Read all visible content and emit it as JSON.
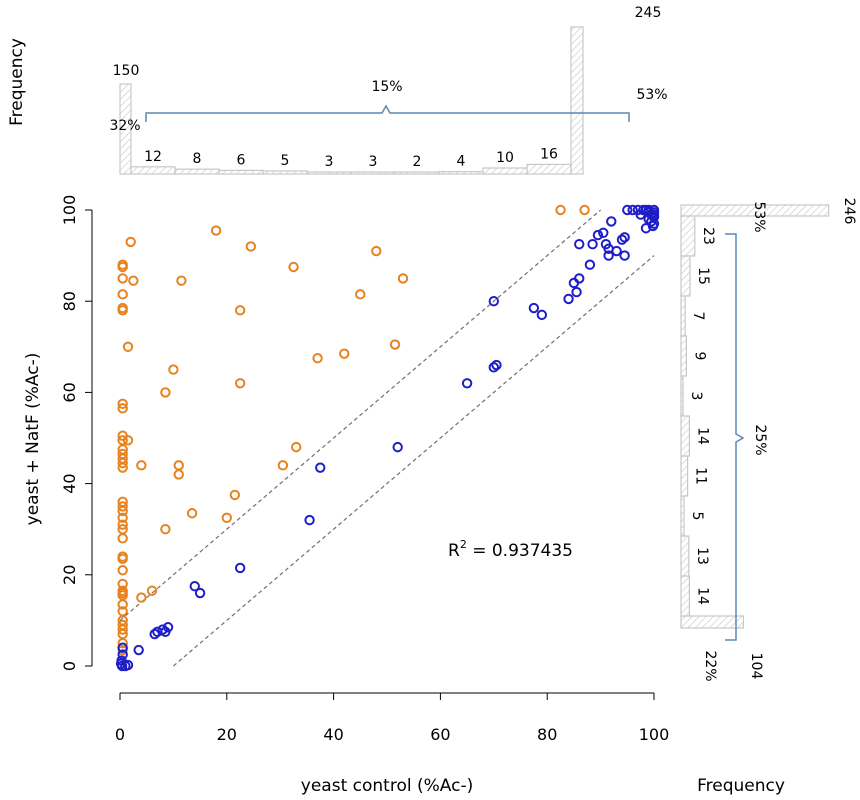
{
  "chart_data": {
    "type": "scatter",
    "xlabel": "yeast control (%Ac-)",
    "ylabel": "yeast + NatF  (%Ac-)",
    "xlim": [
      0,
      100
    ],
    "ylim": [
      0,
      100
    ],
    "xticks": [
      "0",
      "20",
      "40",
      "60",
      "80",
      "100"
    ],
    "yticks": [
      "0",
      "20",
      "40",
      "60",
      "80",
      "100"
    ],
    "annotation": {
      "prefix": "R",
      "sup": "2",
      "rest": " = 0.937435"
    },
    "diagonal_lines": [
      {
        "from": [
          0,
          10
        ],
        "to": [
          90,
          100
        ]
      },
      {
        "from": [
          10,
          0
        ],
        "to": [
          100,
          90
        ]
      }
    ],
    "series": [
      {
        "color": "#e8821e",
        "points": [
          [
            0.5,
            88
          ],
          [
            0.5,
            87.5
          ],
          [
            0.5,
            85
          ],
          [
            0.5,
            81.5
          ],
          [
            0.5,
            78.5
          ],
          [
            0.5,
            78
          ],
          [
            0.5,
            57.5
          ],
          [
            0.5,
            56.5
          ],
          [
            0.5,
            50.5
          ],
          [
            0.5,
            49.5
          ],
          [
            0.5,
            47.5
          ],
          [
            0.5,
            46.5
          ],
          [
            0.5,
            45.5
          ],
          [
            0.5,
            44.5
          ],
          [
            0.5,
            43.5
          ],
          [
            0.5,
            36
          ],
          [
            0.5,
            35
          ],
          [
            0.5,
            34
          ],
          [
            0.5,
            32.5
          ],
          [
            0.5,
            31
          ],
          [
            0.5,
            30
          ],
          [
            0.5,
            28
          ],
          [
            0.5,
            24
          ],
          [
            0.5,
            23.5
          ],
          [
            0.5,
            21
          ],
          [
            0.5,
            18
          ],
          [
            0.5,
            16.5
          ],
          [
            0.5,
            16
          ],
          [
            0.5,
            15.5
          ],
          [
            0.5,
            13.5
          ],
          [
            0.5,
            12
          ],
          [
            0.5,
            10
          ],
          [
            0.5,
            9
          ],
          [
            0.5,
            8
          ],
          [
            0.5,
            7
          ],
          [
            0.5,
            5
          ],
          [
            0.5,
            3.5
          ],
          [
            2,
            93
          ],
          [
            2.5,
            84.5
          ],
          [
            1.5,
            70
          ],
          [
            1.5,
            49.5
          ],
          [
            4,
            44
          ],
          [
            4,
            15
          ],
          [
            6,
            16.5
          ],
          [
            8.5,
            60
          ],
          [
            8.5,
            30
          ],
          [
            10,
            65
          ],
          [
            11,
            44
          ],
          [
            11,
            42
          ],
          [
            11.5,
            84.5
          ],
          [
            13.5,
            33.5
          ],
          [
            18,
            95.5
          ],
          [
            20,
            32.5
          ],
          [
            21.5,
            37.5
          ],
          [
            22.5,
            62
          ],
          [
            22.5,
            78
          ],
          [
            24.5,
            92
          ],
          [
            30.5,
            44
          ],
          [
            32.5,
            87.5
          ],
          [
            33,
            48
          ],
          [
            37,
            67.5
          ],
          [
            42,
            68.5
          ],
          [
            45,
            81.5
          ],
          [
            48,
            91
          ],
          [
            51.5,
            70.5
          ],
          [
            53,
            85
          ],
          [
            82.5,
            100
          ],
          [
            87,
            100
          ]
        ]
      },
      {
        "color": "#1e1ec8",
        "points": [
          [
            0.2,
            0.5
          ],
          [
            0.3,
            1.2
          ],
          [
            0.4,
            0
          ],
          [
            0.5,
            2.5
          ],
          [
            0.5,
            4
          ],
          [
            1,
            0
          ],
          [
            1.5,
            0.2
          ],
          [
            3.5,
            3.5
          ],
          [
            6.5,
            7
          ],
          [
            7,
            7.5
          ],
          [
            8,
            8
          ],
          [
            8.5,
            7.5
          ],
          [
            9,
            8.5
          ],
          [
            14,
            17.5
          ],
          [
            15,
            16
          ],
          [
            22.5,
            21.5
          ],
          [
            35.5,
            32
          ],
          [
            37.5,
            43.5
          ],
          [
            52,
            48
          ],
          [
            65,
            62
          ],
          [
            70,
            65.5
          ],
          [
            70.5,
            66
          ],
          [
            70,
            80
          ],
          [
            77.5,
            78.5
          ],
          [
            79,
            77
          ],
          [
            84,
            80.5
          ],
          [
            85,
            84
          ],
          [
            85.5,
            82
          ],
          [
            86,
            85
          ],
          [
            86,
            92.5
          ],
          [
            88,
            88
          ],
          [
            88.5,
            92.5
          ],
          [
            89.5,
            94.5
          ],
          [
            90.5,
            95
          ],
          [
            91,
            92.5
          ],
          [
            91.5,
            91.5
          ],
          [
            91.5,
            90
          ],
          [
            92,
            97.5
          ],
          [
            93,
            91
          ],
          [
            94,
            93.5
          ],
          [
            94.5,
            90
          ],
          [
            94.5,
            94
          ],
          [
            95,
            100
          ],
          [
            96,
            100
          ],
          [
            97,
            100
          ],
          [
            97.5,
            99
          ],
          [
            98,
            100
          ],
          [
            98.5,
            96
          ],
          [
            99,
            100
          ],
          [
            99,
            98
          ],
          [
            99.5,
            99
          ],
          [
            99.5,
            97.5
          ],
          [
            100,
            100
          ],
          [
            100,
            99.5
          ],
          [
            100,
            99
          ],
          [
            100,
            98.5
          ],
          [
            100,
            97
          ],
          [
            99.8,
            96.5
          ],
          [
            99,
            99.5
          ],
          [
            98.5,
            100
          ]
        ]
      }
    ],
    "top_histogram": {
      "title": "Frequency",
      "counts": [
        150,
        12,
        8,
        6,
        5,
        3,
        3,
        2,
        4,
        10,
        16,
        245
      ],
      "labels": [
        "150",
        "12",
        "8",
        "6",
        "5",
        "3",
        "3",
        "2",
        "4",
        "10",
        "16",
        "245"
      ],
      "pct_low": "32%",
      "pct_mid": "15%",
      "pct_high": "53%"
    },
    "right_histogram": {
      "title": "Frequency",
      "counts": [
        246,
        23,
        15,
        7,
        9,
        3,
        14,
        11,
        5,
        13,
        14,
        104
      ],
      "labels": [
        "246",
        "23",
        "15",
        "7",
        "9",
        "3",
        "14",
        "11",
        "5",
        "13",
        "14",
        "104"
      ],
      "pct_high": "53%",
      "pct_mid": "25%",
      "pct_low": "22%"
    }
  },
  "colors": {
    "pct_red": "#e0201e",
    "pct_green": "#1ea84a",
    "brace": "#5a87b4",
    "hist_stroke": "#c8c8c8"
  }
}
